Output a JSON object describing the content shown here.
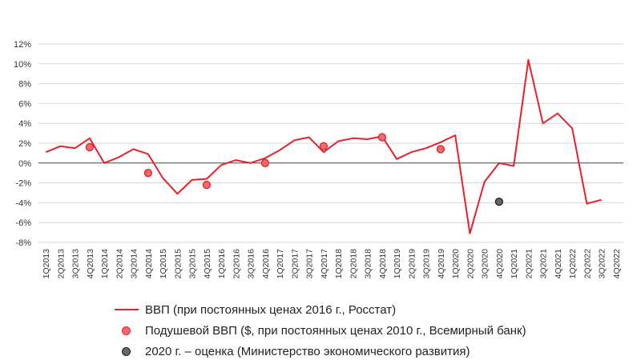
{
  "chart_data": {
    "type": "line",
    "title": "",
    "xlabel": "",
    "ylabel": "",
    "ylim": [
      -8,
      12
    ],
    "yticks": [
      -8,
      -6,
      -4,
      -2,
      0,
      2,
      4,
      6,
      8,
      10,
      12
    ],
    "ytick_labels": [
      "-8%",
      "-6%",
      "-4%",
      "-2%",
      "0%",
      "2%",
      "4%",
      "6%",
      "8%",
      "10%",
      "12%"
    ],
    "categories": [
      "1Q2013",
      "2Q2013",
      "3Q2013",
      "4Q2013",
      "1Q2014",
      "2Q2014",
      "3Q2014",
      "4Q2014",
      "1Q2015",
      "2Q2015",
      "3Q2015",
      "4Q2015",
      "1Q2016",
      "2Q2016",
      "3Q2016",
      "4Q2016",
      "1Q2017",
      "2Q2017",
      "3Q2017",
      "4Q2017",
      "1Q2018",
      "2Q2018",
      "3Q2018",
      "4Q2018",
      "1Q2019",
      "2Q2019",
      "3Q2019",
      "4Q2019",
      "1Q2020",
      "2Q2020",
      "3Q2020",
      "4Q2020",
      "1Q2021",
      "2Q2021",
      "3Q2021",
      "4Q2021",
      "1Q2022",
      "2Q2022",
      "3Q2022",
      "4Q2022"
    ],
    "series": [
      {
        "name": "ВВП (при постоянных ценах 2016 г., Росстат)",
        "kind": "line",
        "color": "#e8202e",
        "values": [
          1.1,
          1.7,
          1.5,
          2.5,
          0.0,
          0.6,
          1.4,
          0.9,
          -1.5,
          -3.1,
          -1.7,
          -1.6,
          -0.2,
          0.3,
          0.0,
          0.5,
          1.3,
          2.3,
          2.6,
          1.1,
          2.2,
          2.5,
          2.4,
          2.7,
          0.4,
          1.1,
          1.5,
          2.1,
          2.8,
          -7.1,
          -1.9,
          0.0,
          -0.3,
          10.4,
          4.0,
          5.0,
          3.5,
          -4.1,
          -3.7,
          null
        ]
      },
      {
        "name": "Подушевой ВВП ($, при постоянных ценах 2010 г., Всемирный банк)",
        "kind": "points",
        "color": "#f26b6b",
        "stroke": "#e8202e",
        "values": [
          null,
          null,
          null,
          1.6,
          null,
          null,
          null,
          -1.0,
          null,
          null,
          null,
          -2.2,
          null,
          null,
          null,
          0.0,
          null,
          null,
          null,
          1.7,
          null,
          null,
          null,
          2.6,
          null,
          null,
          null,
          1.4,
          null,
          null,
          null,
          null,
          null,
          null,
          null,
          null,
          null,
          null,
          null,
          null
        ]
      },
      {
        "name": "2020 г. – оценка (Министерство экономического развития)",
        "kind": "points",
        "color": "#666666",
        "stroke": "#222222",
        "values": [
          null,
          null,
          null,
          null,
          null,
          null,
          null,
          null,
          null,
          null,
          null,
          null,
          null,
          null,
          null,
          null,
          null,
          null,
          null,
          null,
          null,
          null,
          null,
          null,
          null,
          null,
          null,
          null,
          null,
          null,
          null,
          -3.9,
          null,
          null,
          null,
          null,
          null,
          null,
          null,
          null
        ]
      }
    ],
    "grid": true,
    "legend_position": "bottom"
  },
  "legend": {
    "items": [
      {
        "label": "ВВП (при постоянных ценах 2016 г., Росстат)",
        "symbol": "line"
      },
      {
        "label": "Подушевой ВВП ($, при постоянных ценах 2010 г., Всемирный банк)",
        "symbol": "red-dot"
      },
      {
        "label": "2020 г. – оценка (Министерство экономического развития)",
        "symbol": "gray-dot"
      }
    ]
  }
}
